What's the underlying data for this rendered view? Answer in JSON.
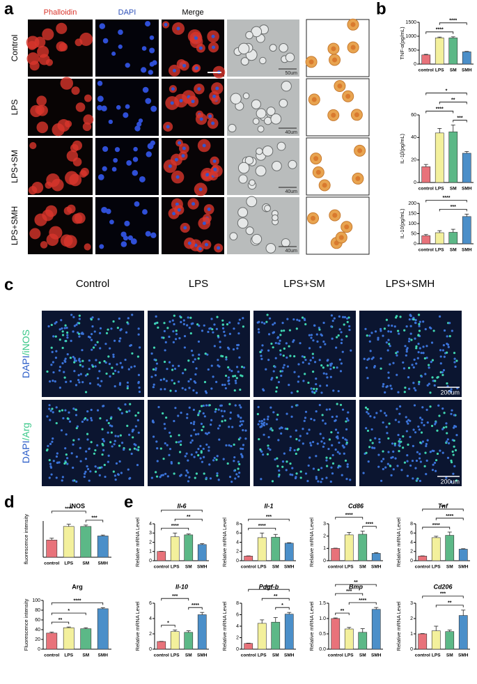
{
  "panel_labels": [
    "a",
    "b",
    "c",
    "d",
    "e"
  ],
  "panel_a": {
    "columns": [
      "Phalloidin",
      "DAPI",
      "Merge"
    ],
    "rows": [
      "Control",
      "LPS",
      "LPS+SM",
      "LPS+SMH"
    ],
    "scale_bars": [
      "50um",
      "40um",
      "40um",
      "40um"
    ]
  },
  "panel_c": {
    "columns": [
      "Control",
      "LPS",
      "LPS+SM",
      "LPS+SMH"
    ],
    "rows": [
      [
        "DAPI",
        "/iNOS"
      ],
      [
        "DAPI",
        "/Arg"
      ]
    ],
    "scale_bars": [
      "200um",
      "200um"
    ]
  },
  "chart_data": [
    {
      "type": "bar",
      "ylabel": "TNF-α(pg/mL)",
      "categories": [
        "control",
        "LPS",
        "SM",
        "SMH"
      ],
      "values": [
        330,
        940,
        940,
        440
      ],
      "errors": [
        20,
        30,
        40,
        15
      ],
      "colors": [
        "#e8727a",
        "#f3f09c",
        "#5cb887",
        "#4b8fc9"
      ],
      "ylim": [
        0,
        1500
      ],
      "yticks": [
        0,
        500,
        1000,
        1500
      ],
      "significance": [
        {
          "label": "****",
          "between": [
            0,
            2
          ]
        },
        {
          "label": "****",
          "between": [
            1,
            3
          ]
        }
      ]
    },
    {
      "type": "bar",
      "ylabel": "IL-1β(pg/mL)",
      "categories": [
        "control",
        "LPS",
        "SM",
        "SMH"
      ],
      "values": [
        14,
        44,
        45,
        26
      ],
      "errors": [
        2,
        4,
        6,
        1.5
      ],
      "colors": [
        "#e8727a",
        "#f3f09c",
        "#5cb887",
        "#4b8fc9"
      ],
      "ylim": [
        0,
        60
      ],
      "yticks": [
        0,
        20,
        40,
        60
      ],
      "significance": [
        {
          "label": "*",
          "between": [
            0,
            3
          ]
        },
        {
          "label": "****",
          "between": [
            0,
            2
          ]
        },
        {
          "label": "**",
          "between": [
            1,
            3
          ]
        },
        {
          "label": "***",
          "between": [
            2,
            3
          ]
        }
      ]
    },
    {
      "type": "bar",
      "ylabel": "IL-10(pg/mL)",
      "categories": [
        "control",
        "LPS",
        "SM",
        "SMH"
      ],
      "values": [
        40,
        55,
        57,
        135
      ],
      "errors": [
        6,
        10,
        15,
        12
      ],
      "colors": [
        "#e8727a",
        "#f3f09c",
        "#5cb887",
        "#4b8fc9"
      ],
      "ylim": [
        0,
        200
      ],
      "yticks": [
        0,
        50,
        100,
        150,
        200
      ],
      "significance": [
        {
          "label": "****",
          "between": [
            0,
            3
          ]
        },
        {
          "label": "***",
          "between": [
            1,
            3
          ]
        }
      ]
    },
    {
      "type": "bar",
      "title": "iNOS",
      "ylabel": "fluorescence intensity",
      "categories": [
        "control",
        "LPS",
        "SM",
        "SMH"
      ],
      "values": [
        19,
        34,
        34,
        23.5
      ],
      "errors": [
        2,
        2.5,
        1.5,
        1
      ],
      "colors": [
        "#e8727a",
        "#f3f09c",
        "#5cb887",
        "#4b8fc9"
      ],
      "ylim": [
        0,
        40
      ],
      "significance": [
        {
          "label": "****",
          "between": [
            0,
            2
          ]
        },
        {
          "label": "***",
          "between": [
            2,
            3
          ]
        }
      ]
    },
    {
      "type": "bar",
      "title": "Arg",
      "ylabel": "Fluorescence intensity",
      "categories": [
        "control",
        "LPS",
        "SM",
        "SMH"
      ],
      "values": [
        33,
        44,
        42,
        83
      ],
      "errors": [
        2,
        1.5,
        2,
        2
      ],
      "colors": [
        "#e8727a",
        "#f3f09c",
        "#5cb887",
        "#4b8fc9"
      ],
      "ylim": [
        0,
        100
      ],
      "yticks": [
        0,
        20,
        40,
        60,
        80,
        100
      ],
      "significance": [
        {
          "label": "****",
          "between": [
            0,
            3
          ]
        },
        {
          "label": "*",
          "between": [
            0,
            2
          ]
        },
        {
          "label": "**",
          "between": [
            0,
            1
          ]
        }
      ]
    },
    {
      "type": "bar",
      "title": "Il-6",
      "ylabel": "Relative mRNA Level",
      "categories": [
        "control",
        "LPS",
        "SM",
        "SMH"
      ],
      "values": [
        1,
        2.6,
        2.8,
        1.75
      ],
      "errors": [
        0.02,
        0.4,
        0.1,
        0.1
      ],
      "colors": [
        "#e8727a",
        "#f3f09c",
        "#5cb887",
        "#4b8fc9"
      ],
      "ylim": [
        0,
        4
      ],
      "yticks": [
        0,
        1,
        2,
        3,
        4
      ],
      "significance": [
        {
          "label": "*",
          "between": [
            0,
            3
          ]
        },
        {
          "label": "****",
          "between": [
            0,
            2
          ]
        },
        {
          "label": "**",
          "between": [
            1,
            3
          ]
        }
      ]
    },
    {
      "type": "bar",
      "title": "Il-1",
      "ylabel": "Relative mRNA Level",
      "categories": [
        "control",
        "LPS",
        "SM",
        "SMH"
      ],
      "values": [
        1,
        5,
        5.1,
        3.8
      ],
      "errors": [
        0.05,
        1,
        0.6,
        0.1
      ],
      "colors": [
        "#e8727a",
        "#f3f09c",
        "#5cb887",
        "#4b8fc9"
      ],
      "ylim": [
        0,
        8
      ],
      "yticks": [
        0,
        2,
        4,
        6,
        8
      ],
      "significance": [
        {
          "label": "***",
          "between": [
            0,
            3
          ]
        },
        {
          "label": "****",
          "between": [
            0,
            2
          ]
        }
      ]
    },
    {
      "type": "bar",
      "title": "Cd86",
      "ylabel": "Relative mRNA Level",
      "categories": [
        "control",
        "LPS",
        "SM",
        "SMH"
      ],
      "values": [
        1,
        2.1,
        2.15,
        0.6
      ],
      "errors": [
        0.02,
        0.2,
        0.25,
        0.05
      ],
      "colors": [
        "#e8727a",
        "#f3f09c",
        "#5cb887",
        "#4b8fc9"
      ],
      "ylim": [
        0,
        3
      ],
      "yticks": [
        0,
        1,
        2,
        3
      ],
      "significance": [
        {
          "label": "****",
          "between": [
            0,
            2
          ]
        },
        {
          "label": "****",
          "between": [
            2,
            3
          ]
        }
      ]
    },
    {
      "type": "bar",
      "title": "Tnf",
      "ylabel": "Relative mRNA Level",
      "categories": [
        "control",
        "LPS",
        "SM",
        "SMH"
      ],
      "values": [
        1,
        5,
        5.5,
        2.5
      ],
      "errors": [
        0.05,
        0.3,
        0.7,
        0.1
      ],
      "colors": [
        "#e8727a",
        "#f3f09c",
        "#5cb887",
        "#4b8fc9"
      ],
      "ylim": [
        0,
        8
      ],
      "yticks": [
        0,
        2,
        4,
        6,
        8
      ],
      "significance": [
        {
          "label": "**",
          "between": [
            0,
            3
          ]
        },
        {
          "label": "****",
          "between": [
            0,
            2
          ]
        },
        {
          "label": "****",
          "between": [
            1,
            3
          ]
        }
      ]
    },
    {
      "type": "bar",
      "title": "Il-10",
      "ylabel": "Relative mRNA Level",
      "categories": [
        "control",
        "LPS",
        "SM",
        "SMH"
      ],
      "values": [
        1,
        2.3,
        2.2,
        4.5
      ],
      "errors": [
        0.02,
        0.2,
        0.2,
        0.3
      ],
      "colors": [
        "#e8727a",
        "#f3f09c",
        "#5cb887",
        "#4b8fc9"
      ],
      "ylim": [
        0,
        6
      ],
      "yticks": [
        0,
        2,
        4,
        6
      ],
      "significance": [
        {
          "label": "****",
          "between": [
            2,
            3
          ]
        },
        {
          "label": "***",
          "between": [
            0,
            2
          ]
        },
        {
          "label": "*",
          "between": [
            0,
            1
          ]
        }
      ]
    },
    {
      "type": "bar",
      "title": "Pdgf-b",
      "ylabel": "Relative mRNA Level",
      "categories": [
        "control",
        "LPS",
        "SM",
        "SMH"
      ],
      "values": [
        1,
        4.5,
        4.7,
        6.1
      ],
      "errors": [
        0.05,
        0.6,
        0.8,
        0.3
      ],
      "colors": [
        "#e8727a",
        "#f3f09c",
        "#5cb887",
        "#4b8fc9"
      ],
      "ylim": [
        0,
        8
      ],
      "yticks": [
        0,
        2,
        4,
        6,
        8
      ],
      "significance": [
        {
          "label": "****",
          "between": [
            0,
            3
          ]
        },
        {
          "label": "**",
          "between": [
            1,
            3
          ]
        },
        {
          "label": "*",
          "between": [
            2,
            3
          ]
        }
      ]
    },
    {
      "type": "bar",
      "title": "Bmp",
      "ylabel": "Relative mRNA Level",
      "categories": [
        "control",
        "LPS",
        "SM",
        "SMH"
      ],
      "values": [
        1,
        0.66,
        0.55,
        1.3
      ],
      "errors": [
        0.02,
        0.05,
        0.12,
        0.06
      ],
      "colors": [
        "#e8727a",
        "#f3f09c",
        "#5cb887",
        "#4b8fc9"
      ],
      "ylim": [
        0,
        1.5
      ],
      "yticks": [
        {
          "value": 0,
          "label": "0.0"
        },
        0.5,
        {
          "value": 1,
          "label": "1.0"
        },
        1.5
      ],
      "significance": [
        {
          "label": "**",
          "between": [
            0,
            3
          ]
        },
        {
          "label": "****",
          "between": [
            1,
            3
          ]
        },
        {
          "label": "***",
          "between": [
            0,
            2
          ]
        },
        {
          "label": "**",
          "between": [
            0,
            1
          ]
        }
      ]
    },
    {
      "type": "bar",
      "title": "Cd206",
      "ylabel": "Relative mRNA Level",
      "categories": [
        "control",
        "LPS",
        "SM",
        "SMH"
      ],
      "values": [
        1,
        1.2,
        1.15,
        2.2
      ],
      "errors": [
        0.02,
        0.3,
        0.1,
        0.35
      ],
      "colors": [
        "#e8727a",
        "#f3f09c",
        "#5cb887",
        "#4b8fc9"
      ],
      "ylim": [
        0,
        3
      ],
      "yticks": [
        0,
        1,
        2,
        3
      ],
      "significance": [
        {
          "label": "***",
          "between": [
            0,
            3
          ]
        },
        {
          "label": "**",
          "between": [
            1,
            3
          ]
        }
      ]
    }
  ]
}
